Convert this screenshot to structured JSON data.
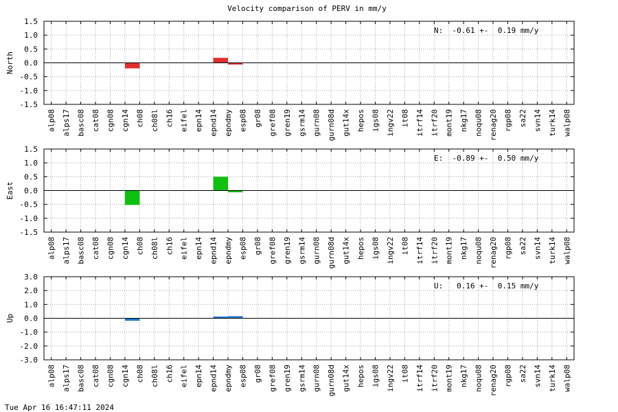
{
  "title": "Velocity comparison of PERV in mm/y",
  "timestamp": "Tue Apr 16 16:47:11 2024",
  "chart_data": {
    "type": "bar",
    "title": "Velocity comparison of PERV in mm/y",
    "categories": [
      "alp08",
      "alps17",
      "basc08",
      "cat08",
      "cgn08",
      "cgn14",
      "ch08",
      "ch08l",
      "ch16",
      "eifel",
      "epn14",
      "epnd14",
      "epndmy",
      "esp08",
      "gr08",
      "gref08",
      "gren19",
      "gsrm14",
      "gurn08",
      "gurn08d",
      "gut14x",
      "hepos",
      "igs08",
      "ingv22",
      "it08",
      "itrf14",
      "itrf20",
      "mont19",
      "nkg17",
      "noqu08",
      "renag20",
      "rgp08",
      "sa22",
      "svn14",
      "turk14",
      "walp08"
    ],
    "panels": [
      {
        "ylabel": "North",
        "ylim": [
          -1.5,
          1.5
        ],
        "yticks": [
          "1.5",
          "1.0",
          "0.5",
          "0.0",
          "-0.5",
          "-1.0",
          "-1.5"
        ],
        "annotation": "N:  -0.61 +-  0.19 mm/y",
        "color": "#e03030",
        "bars": [
          {
            "category": "cgn14",
            "value": -0.2
          },
          {
            "category": "epnd14",
            "value": 0.18
          },
          {
            "category": "epndmy",
            "value": -0.03
          }
        ]
      },
      {
        "ylabel": "East",
        "ylim": [
          -1.5,
          1.5
        ],
        "yticks": [
          "1.5",
          "1.0",
          "0.5",
          "0.0",
          "-0.5",
          "-1.0",
          "-1.5"
        ],
        "annotation": "E:  -0.89 +-  0.50 mm/y",
        "color": "#10c010",
        "bars": [
          {
            "category": "cgn14",
            "value": -0.52
          },
          {
            "category": "epnd14",
            "value": 0.5
          },
          {
            "category": "epndmy",
            "value": -0.06
          }
        ]
      },
      {
        "ylabel": "Up",
        "ylim": [
          -3.0,
          3.0
        ],
        "yticks": [
          "3.0",
          "2.0",
          "1.0",
          "0.0",
          "-1.0",
          "-2.0",
          "-3.0"
        ],
        "annotation": "U:   0.16 +-  0.15 mm/y",
        "color": "#1f78d0",
        "bars": [
          {
            "category": "cgn14",
            "value": -0.18
          },
          {
            "category": "epnd14",
            "value": 0.05
          },
          {
            "category": "epndmy",
            "value": 0.15
          }
        ]
      }
    ]
  }
}
